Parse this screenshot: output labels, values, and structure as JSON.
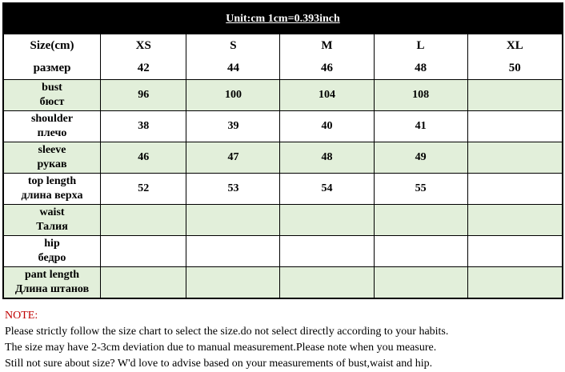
{
  "title": "Unit:cm  1cm=0.393inch",
  "header": {
    "label": "Size(cm)",
    "label_ru": "размер",
    "sizes": [
      "XS",
      "S",
      "M",
      "L",
      "XL"
    ],
    "ru_sizes": [
      "42",
      "44",
      "46",
      "48",
      "50"
    ]
  },
  "rows": [
    {
      "en": "bust",
      "ru": "бюст",
      "values": [
        "96",
        "100",
        "104",
        "108",
        ""
      ]
    },
    {
      "en": "shoulder",
      "ru": "плечо",
      "values": [
        "38",
        "39",
        "40",
        "41",
        ""
      ]
    },
    {
      "en": "sleeve",
      "ru": "рукав",
      "values": [
        "46",
        "47",
        "48",
        "49",
        ""
      ]
    },
    {
      "en": "top length",
      "ru": "длина верха",
      "values": [
        "52",
        "53",
        "54",
        "55",
        ""
      ]
    },
    {
      "en": "waist",
      "ru": "Талия",
      "values": [
        "",
        "",
        "",
        "",
        ""
      ]
    },
    {
      "en": "hip",
      "ru": "бедро",
      "values": [
        "",
        "",
        "",
        "",
        ""
      ]
    },
    {
      "en": "pant length",
      "ru": "Длина штанов",
      "values": [
        "",
        "",
        "",
        "",
        ""
      ]
    }
  ],
  "note": {
    "title": "NOTE:",
    "lines": [
      "Please strictly follow the size chart to select the size.do not select directly according to your habits.",
      "The size may have 2-3cm deviation due to manual measurement.Please note when you measure.",
      "Still not sure about size? W'd love to advise based on your measurements of bust,waist and hip."
    ]
  },
  "colors": {
    "green_row": "#e2efda",
    "note_title": "#c00000"
  }
}
